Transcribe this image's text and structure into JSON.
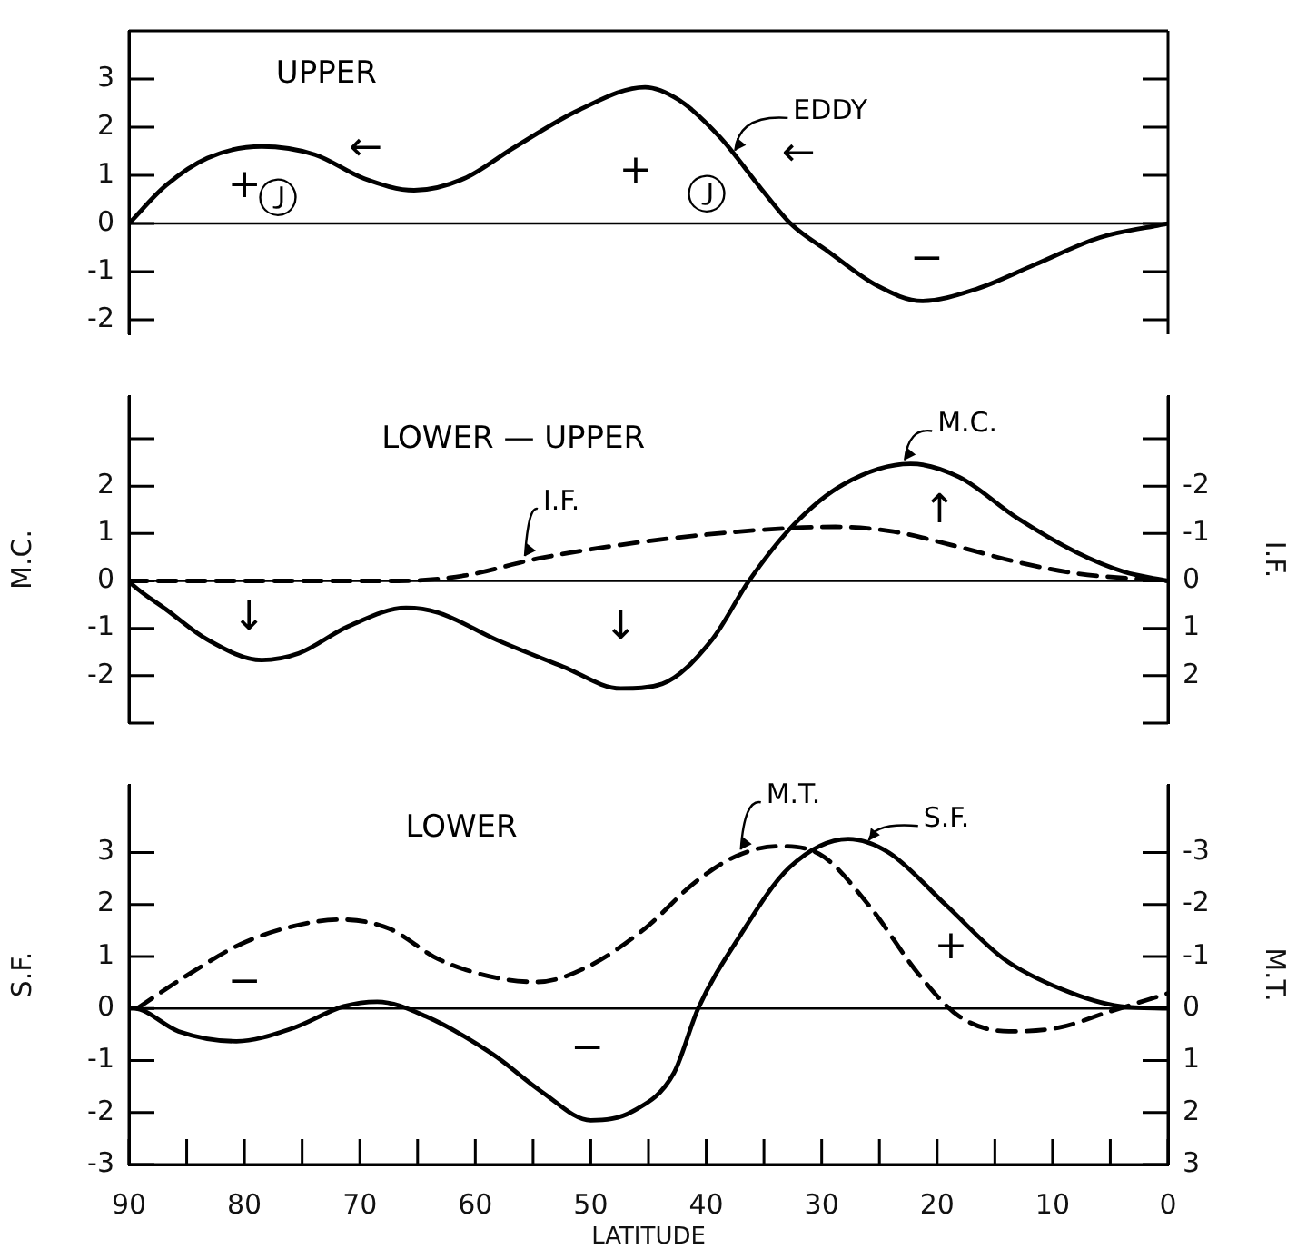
{
  "chart_data": [
    {
      "type": "line",
      "title": "UPPER",
      "xlim": [
        90,
        0
      ],
      "ylim": [
        -2.3,
        4
      ],
      "yticks": [
        -2,
        -1,
        0,
        1,
        2,
        3
      ],
      "tick_labels": "y",
      "grid": false,
      "marker": "none",
      "x": [
        90,
        86.8,
        83.2,
        78.5,
        73.9,
        69.6,
        65.3,
        61,
        56.7,
        51,
        45.3,
        42.4,
        38.8,
        35.2,
        32.7,
        29.5,
        25.2,
        21.3,
        16.6,
        11.6,
        5.9,
        0
      ],
      "series": [
        {
          "name": "EDDY",
          "color": "#000000",
          "line_style": "solid",
          "values": [
            0,
            0.79,
            1.36,
            1.6,
            1.43,
            0.93,
            0.69,
            0.93,
            1.57,
            2.36,
            2.83,
            2.57,
            1.79,
            0.71,
            0,
            -0.57,
            -1.29,
            -1.61,
            -1.36,
            -0.86,
            -0.29,
            0
          ]
        }
      ],
      "ref_lines": [
        {
          "axis": "y",
          "value": 0
        }
      ],
      "annotations": [
        "+",
        "Ⓙ",
        "+",
        "Ⓙ",
        "−",
        "←",
        "←"
      ]
    },
    {
      "type": "line",
      "title": "LOWER — UPPER",
      "xlim": [
        90,
        0
      ],
      "ylim": [
        -3,
        3.9
      ],
      "yticks": [
        {
          "value": -3,
          "label": null
        },
        -2,
        -1,
        0,
        1,
        2,
        {
          "value": 3,
          "label": null
        }
      ],
      "y2lim": [
        3,
        -3.9
      ],
      "y2ticks": [
        {
          "value": 3,
          "label": null
        },
        2,
        1,
        0,
        -1,
        -2,
        {
          "value": -3,
          "label": null
        }
      ],
      "ylabel": "M.C.",
      "y2label": "I.F.",
      "tick_labels": "y",
      "grid": false,
      "marker": "none",
      "series": [
        {
          "name": "M.C.",
          "color": "#000000",
          "line_style": "solid",
          "x": [
            90,
            89.6,
            86.8,
            83.2,
            78.5,
            75.3,
            71,
            66,
            63.2,
            58.2,
            52.4,
            47.4,
            43.8,
            39.5,
            36.3,
            32.4,
            28.1,
            22.3,
            18.1,
            13.1,
            8,
            3.8,
            0
          ],
          "values": [
            0,
            -0.1,
            -0.6,
            -1.24,
            -1.67,
            -1.53,
            -0.96,
            -0.57,
            -0.67,
            -1.24,
            -1.81,
            -2.27,
            -2.17,
            -1.24,
            0,
            1.19,
            2.04,
            2.47,
            2.19,
            1.33,
            0.61,
            0.19,
            0
          ]
        },
        {
          "name": "I.F.",
          "color": "#000000",
          "line_style": "dashed",
          "axis": "y2",
          "x": [
            90,
            66.7,
            61,
            54.6,
            47.4,
            40.3,
            33.1,
            28.8,
            23.8,
            18.8,
            13.1,
            8,
            0
          ],
          "values": [
            0,
            0,
            -0.11,
            -0.47,
            -0.76,
            -0.97,
            -1.11,
            -1.14,
            -1.04,
            -0.76,
            -0.4,
            -0.16,
            0
          ]
        }
      ],
      "ref_lines": [
        {
          "axis": "y",
          "value": 0
        }
      ],
      "annotations": [
        "↓",
        "↓",
        "↑"
      ]
    },
    {
      "type": "line",
      "title": "LOWER",
      "xlim": [
        90,
        0
      ],
      "xticks": [
        90,
        {
          "value": 85,
          "label": null
        },
        80,
        {
          "value": 75,
          "label": null
        },
        70,
        {
          "value": 65,
          "label": null
        },
        60,
        {
          "value": 55,
          "label": null
        },
        50,
        {
          "value": 45,
          "label": null
        },
        40,
        {
          "value": 35,
          "label": null
        },
        30,
        {
          "value": 25,
          "label": null
        },
        20,
        {
          "value": 15,
          "label": null
        },
        10,
        {
          "value": 5,
          "label": null
        },
        0
      ],
      "xlabel": "LATITUDE",
      "ylim": [
        -3,
        4.3
      ],
      "yticks": [
        -3,
        -2,
        -1,
        0,
        1,
        2,
        3
      ],
      "y2lim": [
        3,
        -4.3
      ],
      "y2ticks": [
        3,
        2,
        1,
        0,
        -1,
        -2,
        -3
      ],
      "ylabel": "S.F.",
      "y2label": "M.T.",
      "grid": false,
      "marker": "none",
      "series": [
        {
          "name": "S.F.",
          "color": "#000000",
          "line_style": "solid",
          "x": [
            90,
            89.6,
            85.7,
            80.7,
            75.7,
            71.4,
            68.5,
            64.3,
            58.5,
            54.2,
            50,
            46.4,
            42.8,
            40.7,
            37.1,
            32.8,
            27.7,
            24.2,
            19.2,
            14.2,
            9.2,
            4.1,
            0
          ],
          "values": [
            0,
            0,
            -0.44,
            -0.63,
            -0.37,
            0.04,
            0.13,
            -0.15,
            -0.88,
            -1.61,
            -2.15,
            -1.98,
            -1.24,
            0,
            1.39,
            2.71,
            3.26,
            3,
            1.98,
            0.95,
            0.37,
            0.04,
            0
          ]
        },
        {
          "name": "M.T.",
          "color": "#000000",
          "line_style": "dashed",
          "axis": "y2",
          "x": [
            89.3,
            85.3,
            80.3,
            76,
            71.7,
            67.5,
            63.2,
            58.2,
            54.6,
            50.3,
            45.3,
            41,
            37.4,
            33.8,
            30.2,
            25.9,
            21.6,
            18.1,
            13.8,
            9.5,
            5.2,
            0
          ],
          "values": [
            0,
            -0.59,
            -1.24,
            -1.57,
            -1.71,
            -1.54,
            -0.95,
            -0.59,
            -0.51,
            -0.8,
            -1.54,
            -2.42,
            -2.93,
            -3.12,
            -2.97,
            -1.98,
            -0.66,
            0.15,
            0.44,
            0.37,
            0.07,
            -0.29
          ]
        }
      ],
      "ref_lines": [
        {
          "axis": "y",
          "value": 0
        }
      ],
      "annotations": [
        "−",
        "−",
        "+"
      ]
    }
  ]
}
